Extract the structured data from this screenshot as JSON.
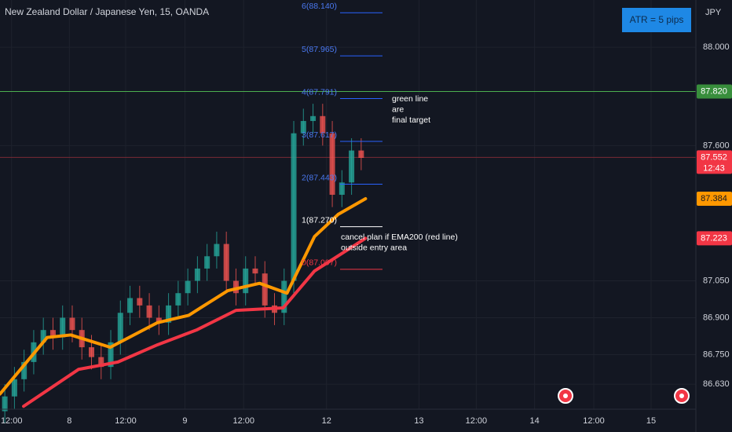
{
  "header": {
    "title": "New Zealand Dollar / Japanese Yen, 15, OANDA",
    "atr_box": "ATR = 5 pips"
  },
  "chart_data": {
    "type": "candlestick",
    "currency": "JPY",
    "x": [
      1,
      3,
      5,
      7,
      9,
      11,
      13,
      15,
      17,
      19,
      21,
      23,
      25,
      27,
      29,
      31,
      33,
      35,
      37,
      39,
      41,
      43,
      45,
      47,
      49,
      51,
      53,
      55,
      57,
      59,
      61,
      63,
      65,
      67,
      69,
      71,
      73,
      75
    ],
    "open": [
      86.52,
      86.58,
      86.65,
      86.72,
      86.8,
      86.85,
      86.82,
      86.9,
      86.85,
      86.78,
      86.74,
      86.7,
      86.8,
      86.92,
      86.98,
      86.95,
      86.9,
      86.88,
      86.95,
      87.0,
      87.05,
      87.1,
      87.15,
      87.2,
      87.05,
      87.0,
      87.1,
      87.08,
      86.95,
      86.92,
      87.05,
      87.65,
      87.7,
      87.72,
      87.65,
      87.4,
      87.45,
      87.58
    ],
    "high": [
      86.63,
      86.7,
      86.77,
      86.85,
      86.9,
      86.9,
      86.95,
      86.95,
      86.9,
      86.83,
      86.79,
      86.85,
      86.97,
      87.03,
      87.03,
      87.0,
      86.95,
      87.0,
      87.05,
      87.1,
      87.15,
      87.2,
      87.25,
      87.25,
      87.1,
      87.15,
      87.15,
      87.13,
      87.0,
      87.1,
      87.7,
      87.75,
      87.77,
      87.77,
      87.7,
      87.5,
      87.63,
      87.63
    ],
    "low": [
      86.47,
      86.53,
      86.6,
      86.67,
      86.75,
      86.77,
      86.77,
      86.8,
      86.73,
      86.69,
      86.65,
      86.65,
      86.75,
      86.87,
      86.9,
      86.85,
      86.83,
      86.83,
      86.9,
      86.95,
      87.0,
      87.05,
      87.1,
      87.0,
      86.95,
      86.95,
      87.03,
      86.9,
      86.87,
      86.87,
      87.0,
      87.6,
      87.65,
      87.6,
      87.35,
      87.35,
      87.4,
      87.5
    ],
    "close": [
      86.58,
      86.65,
      86.72,
      86.8,
      86.85,
      86.82,
      86.9,
      86.85,
      86.78,
      86.74,
      86.7,
      86.8,
      86.92,
      86.98,
      86.95,
      86.9,
      86.88,
      86.95,
      87.0,
      87.05,
      87.1,
      87.15,
      87.2,
      87.05,
      87.0,
      87.1,
      87.08,
      86.95,
      86.92,
      87.05,
      87.65,
      87.7,
      87.72,
      87.65,
      87.4,
      87.45,
      87.58,
      87.55
    ],
    "up_color": "#26a69a",
    "down_color": "#ef5350",
    "lines": [
      {
        "color": "#ff9800",
        "x": [
          0,
          9.8,
          14.7,
          22.9,
          32.7,
          39.2,
          47.3,
          53.9,
          59.6,
          65.3,
          70.2,
          75.9
        ],
        "values": [
          86.59,
          86.82,
          86.83,
          86.78,
          86.88,
          86.91,
          87.01,
          87.04,
          87.0,
          87.23,
          87.32,
          87.384
        ]
      },
      {
        "color": "#f23645",
        "x": [
          4.9,
          16.3,
          24.5,
          32.7,
          40.8,
          49,
          58.8,
          65.3,
          75.9
        ],
        "values": [
          86.54,
          86.69,
          86.72,
          86.79,
          86.85,
          86.93,
          86.94,
          87.09,
          87.223
        ]
      }
    ],
    "hlines": [
      {
        "value": 87.82,
        "color": "#4caf50"
      },
      {
        "value": 87.552,
        "color": "#7a2a35"
      }
    ],
    "price_labels": [
      {
        "value": 87.82,
        "label": "87.820",
        "color": "#388e3c"
      },
      {
        "value": 87.552,
        "label": "87.552",
        "sub": "12:43",
        "color": "#f23645"
      },
      {
        "value": 87.384,
        "label": "87.384",
        "color": "#ff9800"
      },
      {
        "value": 87.223,
        "label": "87.223",
        "color": "#f23645"
      }
    ],
    "fib": [
      {
        "label": "0(87.097)",
        "value": 87.097,
        "color": "#f23645"
      },
      {
        "label": "1(87.270)",
        "value": 87.27,
        "color": "#ffffff"
      },
      {
        "label": "2(87.443)",
        "value": 87.443,
        "color": "#2962ff"
      },
      {
        "label": "3(87.617)",
        "value": 87.617,
        "color": "#2962ff"
      },
      {
        "label": "4(87.791)",
        "value": 87.791,
        "color": "#2962ff"
      },
      {
        "label": "5(87.965)",
        "value": 87.965,
        "color": "#2962ff"
      },
      {
        "label": "6(88.140)",
        "value": 88.14,
        "color": "#2962ff"
      }
    ],
    "annotations": [
      [
        "green line",
        "are",
        "final target"
      ],
      [
        "cancel plan if EMA200 (red line)",
        "outside entry area"
      ]
    ],
    "xlim": [
      0,
      144.5
    ],
    "ylim": [
      86.528,
      88.192
    ],
    "xticks": [
      {
        "value": 2.4,
        "label": "12:00"
      },
      {
        "value": 14.4,
        "label": "8"
      },
      {
        "value": 26.1,
        "label": "12:00"
      },
      {
        "value": 38.4,
        "label": "9"
      },
      {
        "value": 50.6,
        "label": "12:00"
      },
      {
        "value": 67.8,
        "label": "12"
      },
      {
        "value": 87,
        "label": "13"
      },
      {
        "value": 98.9,
        "label": "12:00"
      },
      {
        "value": 111,
        "label": "14"
      },
      {
        "value": 123.3,
        "label": "12:00"
      },
      {
        "value": 135.2,
        "label": "15"
      }
    ],
    "yticks": [
      {
        "value": 88,
        "label": "88.000"
      },
      {
        "value": 87.6,
        "label": "87.600"
      },
      {
        "value": 87.05,
        "label": "87.050"
      },
      {
        "value": 86.9,
        "label": "86.900"
      },
      {
        "value": 86.75,
        "label": "86.750"
      },
      {
        "value": 86.63,
        "label": "86.630"
      }
    ],
    "grid": true
  }
}
